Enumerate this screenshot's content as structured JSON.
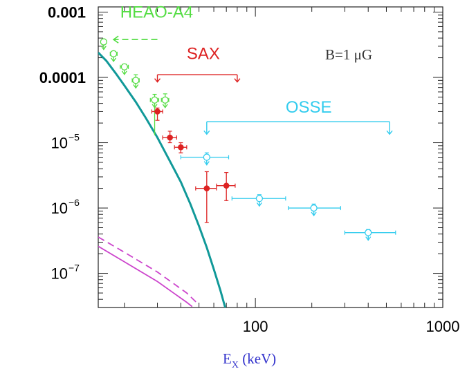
{
  "chart_data": {
    "type": "scatter",
    "title": "",
    "xlabel": "E_X (keV)",
    "xlabel_parts": {
      "main": "E",
      "sub": "X",
      "rest": " (keV)"
    },
    "ylabel": "",
    "xscale": "log",
    "yscale": "log",
    "xlim": [
      14.5,
      1000
    ],
    "ylim": [
      3e-08,
      0.0012
    ],
    "xticks": [
      {
        "value": 100,
        "label": "100"
      },
      {
        "value": 1000,
        "label": "1000"
      }
    ],
    "yticks": [
      {
        "value": 0.001,
        "label": "0.001",
        "style": "plain"
      },
      {
        "value": 0.0001,
        "label": "0.0001",
        "style": "plain"
      },
      {
        "value": 1e-05,
        "label": "10",
        "exp": "−5",
        "style": "pow"
      },
      {
        "value": 1e-06,
        "label": "10",
        "exp": "−6",
        "style": "pow"
      },
      {
        "value": 1e-07,
        "label": "10",
        "exp": "−7",
        "style": "pow"
      }
    ],
    "annotation": {
      "text": "B=1  μG",
      "x": 230,
      "y": 0.00025,
      "color": "#333333"
    },
    "colors": {
      "heao": "#55dd44",
      "sax": "#dd2222",
      "osse": "#33ccee",
      "model": "#119999",
      "magenta": "#cc44cc"
    },
    "series": [
      {
        "name": "HEAO-A4",
        "label_pos": {
          "x": 19,
          "y": 0.00082
        },
        "range_arrow": {
          "from": 30,
          "to": 17.5,
          "y": 0.00038
        },
        "points": [
          {
            "x": 15.5,
            "y": 0.00035,
            "xerr": [
              15.0,
              16.0
            ],
            "yerr": [
              0.0003,
              0.00038
            ],
            "upper": true
          },
          {
            "x": 17.5,
            "y": 0.00023,
            "xerr": [
              16.8,
              18.3
            ],
            "yerr": [
              0.00021,
              0.00025
            ],
            "upper": true
          },
          {
            "x": 20,
            "y": 0.000145,
            "xerr": [
              19,
              21
            ],
            "yerr": [
              0.00013,
              0.00016
            ],
            "upper": true
          },
          {
            "x": 23,
            "y": 9e-05,
            "xerr": [
              22,
              24
            ],
            "yerr": [
              7e-05,
              0.00011
            ],
            "upper": true
          },
          {
            "x": 29,
            "y": 4.5e-05,
            "xerr": [
              27.5,
              30.5
            ],
            "yerr": [
              1.3e-05,
              5.5e-05
            ],
            "upper": true
          },
          {
            "x": 33,
            "y": 4.5e-05,
            "xerr": [
              31.5,
              34.5
            ],
            "yerr": [
              3.8e-05,
              5.6e-05
            ],
            "upper": true
          }
        ]
      },
      {
        "name": "SAX",
        "label_pos": {
          "x": 43,
          "y": 0.00019
        },
        "range_arrow": {
          "from": 30,
          "to": 80,
          "y": 0.00011,
          "drop_to": 8.5e-05
        },
        "points": [
          {
            "x": 30,
            "y": 3e-05,
            "xerr": [
              28,
              32
            ],
            "yerr": [
              2.2e-05,
              3.4e-05
            ]
          },
          {
            "x": 35,
            "y": 1.2e-05,
            "xerr": [
              32,
              38
            ],
            "yerr": [
              1e-05,
              1.5e-05
            ]
          },
          {
            "x": 40,
            "y": 8.5e-06,
            "xerr": [
              37,
              43
            ],
            "yerr": [
              7e-06,
              1e-05
            ]
          },
          {
            "x": 55,
            "y": 2e-06,
            "xerr": [
              48,
              62
            ],
            "yerr": [
              6e-07,
              3.6e-06
            ]
          },
          {
            "x": 70,
            "y": 2.2e-06,
            "xerr": [
              62,
              78
            ],
            "yerr": [
              1.3e-06,
              3.5e-06
            ]
          }
        ]
      },
      {
        "name": "OSSE",
        "label_pos": {
          "x": 145,
          "y": 2.9e-05
        },
        "range_arrow": {
          "from": 55,
          "to": 520,
          "y": 2.1e-05,
          "drop_to": 1.35e-05
        },
        "points": [
          {
            "x": 55,
            "y": 6e-06,
            "xerr": [
              40,
              72
            ],
            "yerr": [
              4.5e-06,
              7e-06
            ],
            "upper": true
          },
          {
            "x": 105,
            "y": 1.4e-06,
            "xerr": [
              75,
              145
            ],
            "yerr": [
              1.1e-06,
              1.6e-06
            ],
            "upper": true
          },
          {
            "x": 205,
            "y": 1e-06,
            "xerr": [
              150,
              285
            ],
            "yerr": [
              8e-07,
              1.15e-06
            ],
            "upper": true
          },
          {
            "x": 400,
            "y": 4.2e-07,
            "xerr": [
              300,
              560
            ],
            "yerr": [
              3.4e-07,
              4.7e-07
            ],
            "upper": true
          }
        ]
      }
    ],
    "model_curve": {
      "name": "",
      "style": "solid",
      "points": [
        [
          14.5,
          0.00024
        ],
        [
          16,
          0.00018
        ],
        [
          18,
          0.000115
        ],
        [
          20,
          7.5e-05
        ],
        [
          23,
          4.2e-05
        ],
        [
          26,
          2.4e-05
        ],
        [
          30,
          1.2e-05
        ],
        [
          35,
          5.2e-06
        ],
        [
          40,
          2.5e-06
        ],
        [
          45,
          1.15e-06
        ],
        [
          50,
          5.3e-07
        ],
        [
          55,
          2.5e-07
        ],
        [
          60,
          1.15e-07
        ],
        [
          65,
          5.5e-08
        ],
        [
          69,
          3e-08
        ]
      ]
    },
    "magenta_lines": [
      {
        "style": "solid",
        "points": [
          [
            14.5,
            2.6e-07
          ],
          [
            20,
            1.5e-07
          ],
          [
            30,
            7.5e-08
          ],
          [
            43,
            3.6e-08
          ],
          [
            46,
            3.1e-08
          ]
        ]
      },
      {
        "style": "dashed",
        "points": [
          [
            14.5,
            3.6e-07
          ],
          [
            20,
            2.1e-07
          ],
          [
            30,
            1.05e-07
          ],
          [
            43,
            5e-08
          ],
          [
            50,
            3.3e-08
          ]
        ]
      }
    ]
  }
}
